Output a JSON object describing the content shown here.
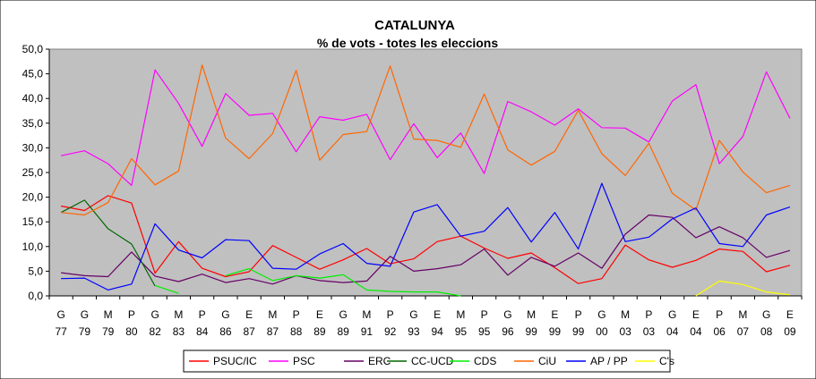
{
  "chart_data": {
    "type": "line",
    "title": "CATALUNYA",
    "subtitle": "% de vots - totes les eleccions",
    "xlabel": "",
    "ylabel": "",
    "ylim": [
      0,
      50
    ],
    "yticks": [
      "0,0",
      "5,0",
      "10,0",
      "15,0",
      "20,0",
      "25,0",
      "30,0",
      "35,0",
      "40,0",
      "45,0",
      "50,0"
    ],
    "grid": false,
    "legend_position": "bottom",
    "categories": [
      {
        "type": "G",
        "year": "77"
      },
      {
        "type": "G",
        "year": "79"
      },
      {
        "type": "M",
        "year": "79"
      },
      {
        "type": "P",
        "year": "80"
      },
      {
        "type": "G",
        "year": "82"
      },
      {
        "type": "M",
        "year": "83"
      },
      {
        "type": "P",
        "year": "84"
      },
      {
        "type": "G",
        "year": "86"
      },
      {
        "type": "E",
        "year": "87"
      },
      {
        "type": "M",
        "year": "87"
      },
      {
        "type": "P",
        "year": "88"
      },
      {
        "type": "E",
        "year": "89"
      },
      {
        "type": "G",
        "year": "89"
      },
      {
        "type": "M",
        "year": "91"
      },
      {
        "type": "P",
        "year": "92"
      },
      {
        "type": "G",
        "year": "93"
      },
      {
        "type": "E",
        "year": "94"
      },
      {
        "type": "M",
        "year": "95"
      },
      {
        "type": "P",
        "year": "95"
      },
      {
        "type": "G",
        "year": "96"
      },
      {
        "type": "M",
        "year": "99"
      },
      {
        "type": "E",
        "year": "99"
      },
      {
        "type": "P",
        "year": "99"
      },
      {
        "type": "G",
        "year": "00"
      },
      {
        "type": "M",
        "year": "03"
      },
      {
        "type": "P",
        "year": "03"
      },
      {
        "type": "G",
        "year": "04"
      },
      {
        "type": "E",
        "year": "04"
      },
      {
        "type": "P",
        "year": "06"
      },
      {
        "type": "M",
        "year": "07"
      },
      {
        "type": "G",
        "year": "08"
      },
      {
        "type": "E",
        "year": "09"
      }
    ],
    "series": [
      {
        "name": "PSUC/IC",
        "color": "#ff0000",
        "values": [
          18.2,
          17.3,
          20.3,
          18.8,
          4.6,
          11.0,
          5.6,
          3.9,
          4.9,
          10.2,
          7.8,
          5.4,
          7.3,
          9.6,
          6.5,
          7.5,
          11.0,
          12.1,
          9.7,
          7.6,
          8.7,
          5.7,
          2.5,
          3.5,
          10.3,
          7.3,
          5.8,
          7.2,
          9.5,
          9.0,
          4.9,
          6.2
        ]
      },
      {
        "name": "PSC",
        "color": "#ff00ff",
        "values": [
          28.4,
          29.4,
          26.8,
          22.4,
          45.8,
          39.0,
          30.3,
          41.0,
          36.6,
          37.0,
          29.2,
          36.3,
          35.6,
          36.8,
          27.6,
          34.9,
          28.0,
          33.0,
          24.8,
          39.4,
          37.3,
          34.6,
          37.9,
          34.1,
          34.0,
          31.2,
          39.5,
          42.8,
          26.8,
          32.3,
          45.4,
          36.0
        ]
      },
      {
        "name": "ERC",
        "color": "#660066",
        "values": [
          4.7,
          4.1,
          3.9,
          8.9,
          4.0,
          2.9,
          4.4,
          2.7,
          3.5,
          2.4,
          4.1,
          3.1,
          2.7,
          3.0,
          8.0,
          5.0,
          5.5,
          6.3,
          9.5,
          4.2,
          7.8,
          6.0,
          8.7,
          5.6,
          12.5,
          16.4,
          15.9,
          11.8,
          14.0,
          11.8,
          7.8,
          9.2
        ]
      },
      {
        "name": "CC-UCD",
        "color": "#006600",
        "values": [
          16.9,
          19.4,
          13.6,
          10.5,
          2.0,
          null,
          null,
          null,
          null,
          null,
          null,
          null,
          null,
          null,
          null,
          null,
          null,
          null,
          null,
          null,
          null,
          null,
          null,
          null,
          null,
          null,
          null,
          null,
          null,
          null,
          null,
          null
        ]
      },
      {
        "name": "CDS",
        "color": "#00ee00",
        "values": [
          null,
          null,
          null,
          null,
          2.1,
          0.5,
          null,
          4.1,
          5.5,
          3.1,
          4.1,
          3.6,
          4.3,
          1.2,
          0.9,
          0.8,
          0.8,
          0.0,
          null,
          null,
          null,
          null,
          null,
          null,
          null,
          null,
          null,
          null,
          null,
          null,
          null,
          null
        ]
      },
      {
        "name": "CiU",
        "color": "#ff6600",
        "values": [
          16.9,
          16.4,
          18.9,
          27.8,
          22.5,
          25.3,
          46.8,
          32.0,
          27.8,
          32.9,
          45.7,
          27.5,
          32.7,
          33.3,
          46.6,
          31.8,
          31.5,
          30.1,
          40.9,
          29.6,
          26.5,
          29.3,
          37.6,
          28.8,
          24.4,
          30.9,
          20.8,
          17.4,
          31.5,
          25.1,
          20.9,
          22.4
        ]
      },
      {
        "name": "AP / PP",
        "color": "#0000ff",
        "values": [
          3.5,
          3.6,
          1.2,
          2.4,
          14.6,
          9.3,
          7.7,
          11.4,
          11.2,
          5.6,
          5.4,
          8.5,
          10.6,
          6.6,
          6.0,
          17.0,
          18.5,
          12.1,
          13.1,
          17.9,
          10.9,
          16.9,
          9.5,
          22.8,
          11.0,
          11.9,
          15.6,
          17.8,
          10.6,
          10.0,
          16.4,
          18.0
        ]
      },
      {
        "name": "C's",
        "color": "#ffff00",
        "values": [
          null,
          null,
          null,
          null,
          null,
          null,
          null,
          null,
          null,
          null,
          null,
          null,
          null,
          null,
          null,
          null,
          null,
          null,
          null,
          null,
          null,
          null,
          null,
          null,
          null,
          null,
          null,
          0.0,
          3.0,
          2.3,
          0.8,
          0.2
        ]
      }
    ]
  }
}
